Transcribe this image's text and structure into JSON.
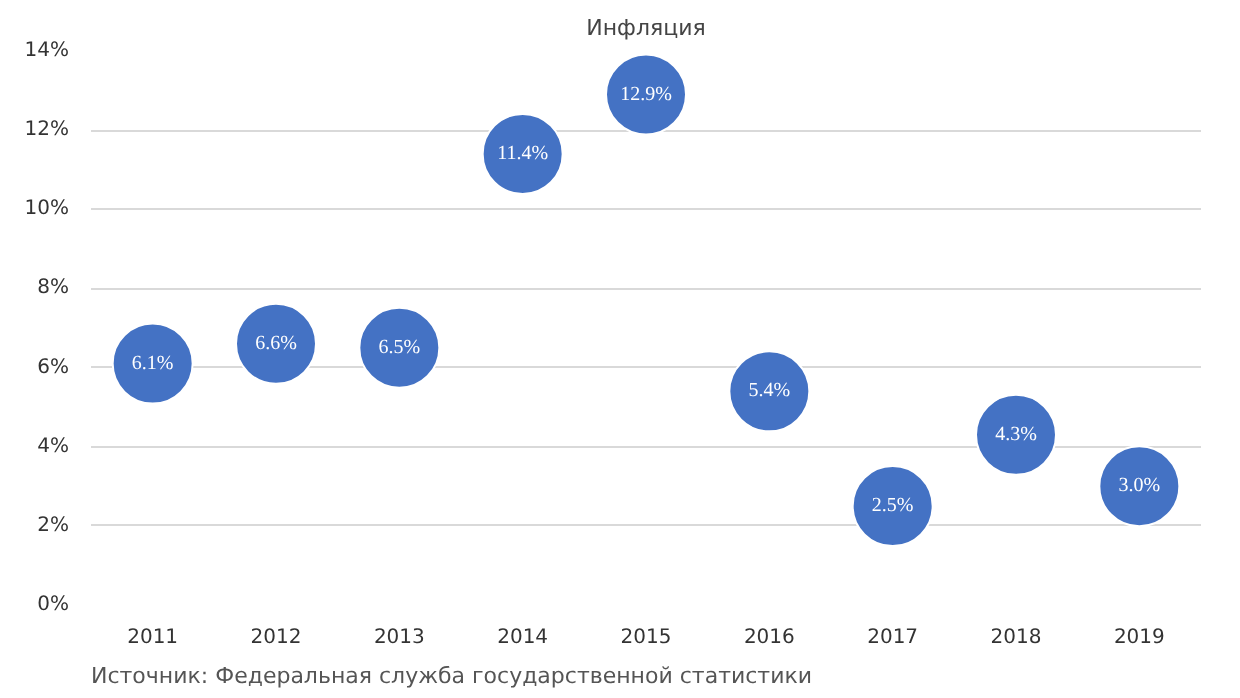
{
  "chart_data": {
    "type": "scatter",
    "title": "Инфляция",
    "categories": [
      "2011",
      "2012",
      "2013",
      "2014",
      "2015",
      "2016",
      "2017",
      "2018",
      "2019"
    ],
    "series": [
      {
        "color": "#4472c4",
        "values": [
          6.1,
          6.6,
          6.5,
          11.4,
          12.9,
          5.4,
          2.5,
          4.3,
          3.0
        ]
      }
    ],
    "value_labels": [
      "6.1%",
      "6.6%",
      "6.5%",
      "11.4%",
      "12.9%",
      "5.4%",
      "2.5%",
      "4.3%",
      "3.0%"
    ],
    "ylim": [
      0,
      14
    ],
    "yticks": [
      {
        "value": 0,
        "label": "0%"
      },
      {
        "value": 2,
        "label": "2%"
      },
      {
        "value": 4,
        "label": "4%"
      },
      {
        "value": 6,
        "label": "6%"
      },
      {
        "value": 8,
        "label": "8%"
      },
      {
        "value": 10,
        "label": "10%"
      },
      {
        "value": 12,
        "label": "12%"
      },
      {
        "value": 14,
        "label": "14%"
      }
    ],
    "grid": "y",
    "marker": "circle",
    "annotations": [
      "Источник: Федеральная служба государственной статистики"
    ]
  }
}
